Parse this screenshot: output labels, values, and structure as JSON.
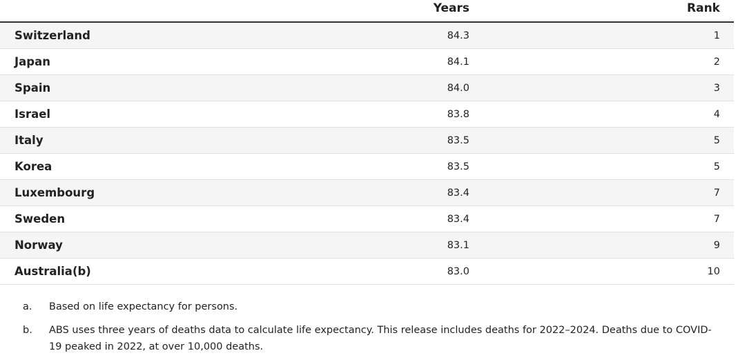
{
  "table": {
    "header": {
      "years": "Years",
      "rank": "Rank"
    },
    "rows": [
      [
        "Switzerland",
        "84.3",
        "1"
      ],
      [
        "Japan",
        "84.1",
        "2"
      ],
      [
        "Spain",
        "84.0",
        "3"
      ],
      [
        "Israel",
        "83.8",
        "4"
      ],
      [
        "Italy",
        "83.5",
        "5"
      ],
      [
        "Korea",
        "83.5",
        "5"
      ],
      [
        "Luxembourg",
        "83.4",
        "7"
      ],
      [
        "Sweden",
        "83.4",
        "7"
      ],
      [
        "Norway",
        "83.1",
        "9"
      ],
      [
        "Australia(b)",
        "83.0",
        "10"
      ]
    ]
  },
  "notes": [
    {
      "marker": "a.",
      "text": "Based on life expectancy for persons."
    },
    {
      "marker": "b.",
      "text": "ABS uses three years of deaths data to calculate life expectancy. This release includes deaths for 2022–2024. Deaths due to COVID-19 peaked in 2022, at over 10,000 deaths."
    }
  ]
}
